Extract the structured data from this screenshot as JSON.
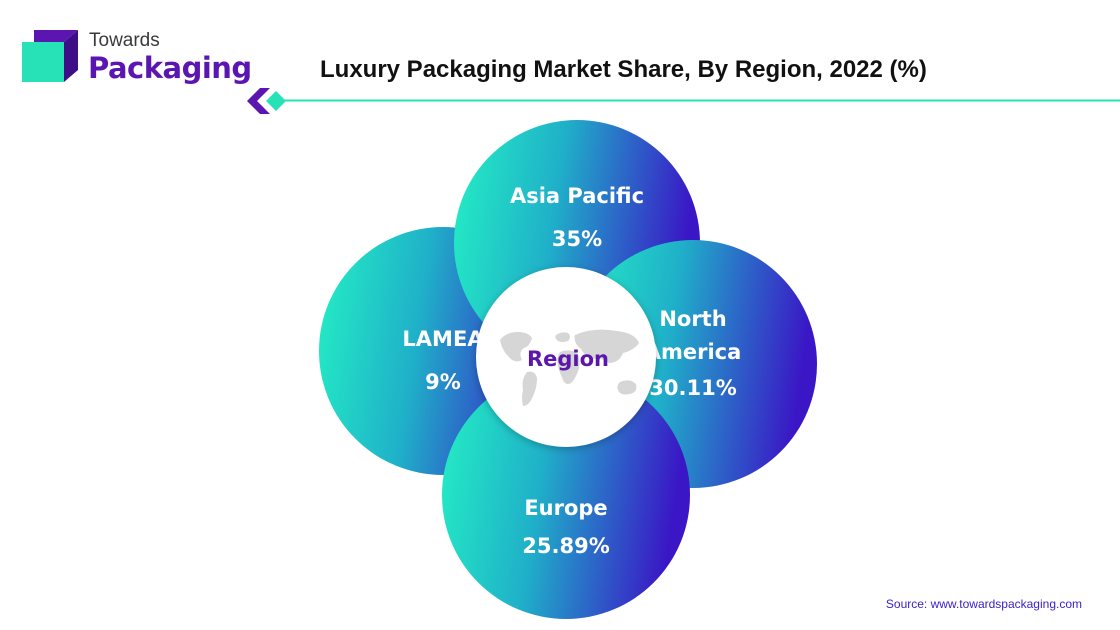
{
  "brand": {
    "line1": "Towards",
    "line2": "Packaging"
  },
  "colors": {
    "brand_purple": "#5b16b2",
    "brand_teal": "#27e2b6",
    "gradient_start": "#24f0c4",
    "gradient_end": "#3a16c6",
    "center_text": "#5a17a9"
  },
  "chart_data": {
    "type": "pie",
    "title": "Luxury Packaging Market Share, By Region, 2022 (%)",
    "center_label": "Region",
    "categories": [
      "Asia Pacific",
      "North America",
      "Europe",
      "LAMEA"
    ],
    "values": [
      35,
      30.11,
      25.89,
      9
    ],
    "value_labels": [
      "35%",
      "30.11%",
      "25.89%",
      "9%"
    ],
    "category_lines": [
      [
        "Asia Pacific"
      ],
      [
        "North",
        "America"
      ],
      [
        "Europe"
      ],
      [
        "LAMEA"
      ]
    ]
  },
  "footer": {
    "source": "Source: www.towardspackaging.com"
  }
}
